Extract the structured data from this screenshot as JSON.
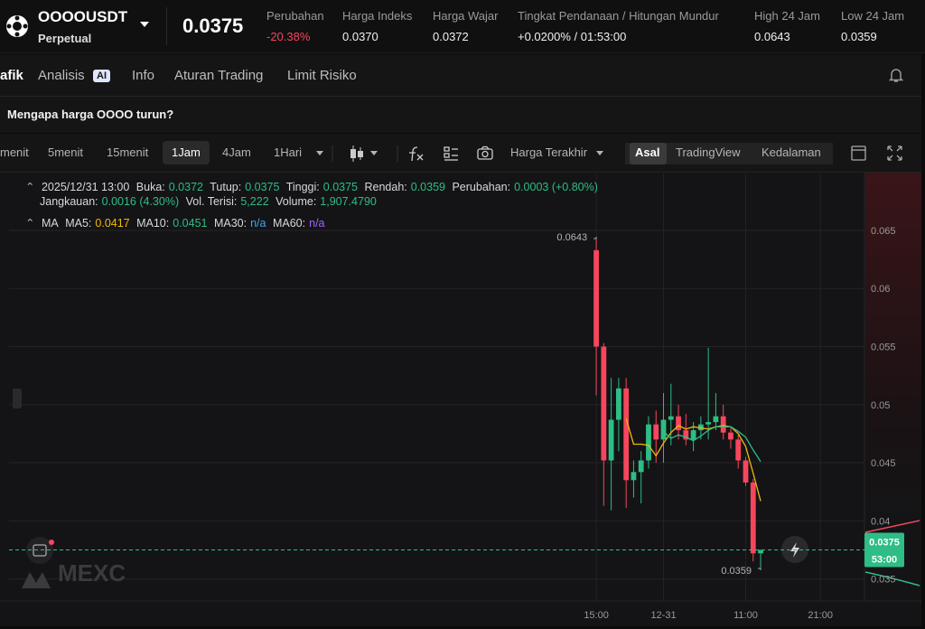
{
  "header": {
    "symbol": "OOOOUSDT",
    "contract": "Perpetual",
    "price": "0.0375",
    "stats": [
      {
        "label": "Perubahan",
        "value": "-20.38%"
      },
      {
        "label": "Harga Indeks",
        "value": "0.0370"
      },
      {
        "label": "Harga Wajar",
        "value": "0.0372"
      },
      {
        "label": "Tingkat Pendanaan / Hitungan Mundur",
        "value": "+0.0200% / 01:53:00"
      },
      {
        "label": "High 24 Jam",
        "value": "0.0643"
      },
      {
        "label": "Low 24 Jam",
        "value": "0.0359"
      }
    ]
  },
  "tabs": [
    "afik",
    "Analisis",
    "Info",
    "Aturan Trading",
    "Limit Risiko"
  ],
  "ai_badge": "AI",
  "banner": "Mengapa harga OOOO turun?",
  "toolbar": {
    "intervals": [
      "menit",
      "5menit",
      "15menit",
      "1Jam",
      "4Jam",
      "1Hari"
    ],
    "price_source": "Harga Terakhir",
    "views": [
      "Asal",
      "TradingView",
      "Kedalaman"
    ]
  },
  "legend": {
    "time": "2025/12/31 13:00",
    "ohlc": [
      {
        "label": "Buka:",
        "value": "0.0372"
      },
      {
        "label": "Tutup:",
        "value": "0.0375"
      },
      {
        "label": "Tinggi:",
        "value": "0.0375"
      },
      {
        "label": "Rendah:",
        "value": "0.0359"
      },
      {
        "label": "Perubahan:",
        "value": "0.0003 (+0.80%)"
      }
    ],
    "stats": [
      {
        "label": "Jangkauan:",
        "value": "0.0016 (4.30%)"
      },
      {
        "label": "Vol. Terisi:",
        "value": "5,222"
      },
      {
        "label": "Volume:",
        "value": "1,907.4790"
      }
    ],
    "ma_title": "MA",
    "ma": [
      {
        "label": "MA5:",
        "value": "0.0417"
      },
      {
        "label": "MA10:",
        "value": "0.0451"
      },
      {
        "label": "MA30:",
        "value": "n/a"
      },
      {
        "label": "MA60:",
        "value": "n/a"
      }
    ]
  },
  "chart_data": {
    "type": "candlestick",
    "x": [
      0,
      1,
      2,
      3,
      4,
      5,
      6,
      7,
      8,
      9,
      10,
      11,
      12,
      13,
      14,
      15,
      16,
      17,
      18,
      19,
      20,
      21,
      22
    ],
    "open": [
      0.0633,
      0.055,
      0.0452,
      0.0487,
      0.0514,
      0.0435,
      0.0442,
      0.0452,
      0.0483,
      0.047,
      0.0487,
      0.049,
      0.0478,
      0.047,
      0.0478,
      0.0483,
      0.0485,
      0.049,
      0.0476,
      0.047,
      0.0452,
      0.0433,
      0.0372
    ],
    "high": [
      0.0643,
      0.0553,
      0.0523,
      0.0523,
      0.0523,
      0.0452,
      0.046,
      0.049,
      0.0495,
      0.051,
      0.0518,
      0.05,
      0.0492,
      0.0485,
      0.049,
      0.0549,
      0.051,
      0.05,
      0.048,
      0.0474,
      0.0455,
      0.0436,
      0.0375
    ],
    "low": [
      0.0508,
      0.0413,
      0.0409,
      0.046,
      0.0411,
      0.042,
      0.0415,
      0.0445,
      0.045,
      0.045,
      0.0465,
      0.047,
      0.0465,
      0.046,
      0.047,
      0.047,
      0.0478,
      0.047,
      0.0462,
      0.0445,
      0.043,
      0.0365,
      0.0359
    ],
    "close": [
      0.055,
      0.0452,
      0.0487,
      0.0514,
      0.0435,
      0.0442,
      0.0452,
      0.0483,
      0.047,
      0.0487,
      0.049,
      0.0478,
      0.047,
      0.0478,
      0.0483,
      0.0485,
      0.049,
      0.0476,
      0.047,
      0.0452,
      0.0433,
      0.0372,
      0.0375
    ],
    "up_color": "#2ebd85",
    "down_color": "#f6465d",
    "series": [
      {
        "name": "MA5:",
        "color": "#f0b90b",
        "values": [
          null,
          null,
          null,
          null,
          0.0488,
          0.0466,
          0.0466,
          0.0465,
          0.0456,
          0.0467,
          0.0476,
          0.0482,
          0.0479,
          0.0481,
          0.048,
          0.0479,
          0.0481,
          0.0482,
          0.0481,
          0.0475,
          0.0464,
          0.0441,
          0.0417
        ]
      },
      {
        "name": "MA10:",
        "color": "#2ebd85",
        "values": [
          null,
          null,
          null,
          null,
          null,
          null,
          null,
          null,
          null,
          0.0477,
          0.0471,
          0.0474,
          0.0472,
          0.0469,
          0.0473,
          0.0478,
          0.0481,
          0.0481,
          0.0481,
          0.0477,
          0.0472,
          0.0461,
          0.0451
        ]
      }
    ],
    "xlim": [
      -78.6,
      35.9
    ],
    "ylim": [
      0.0331,
      0.0699
    ],
    "xticks": [
      {
        "value": 0,
        "label": "15:00"
      },
      {
        "value": 9,
        "label": "12-31"
      },
      {
        "value": 20,
        "label": "11:00"
      },
      {
        "value": 30,
        "label": "21:00"
      }
    ],
    "yticks": [
      0.035,
      0.04,
      0.045,
      0.05,
      0.055,
      0.06,
      0.065
    ],
    "grid": true,
    "high_label": "0.0643",
    "low_label": "0.0359",
    "last_price": "0.0375",
    "countdown": "53:00",
    "watermark": "MEXC"
  }
}
